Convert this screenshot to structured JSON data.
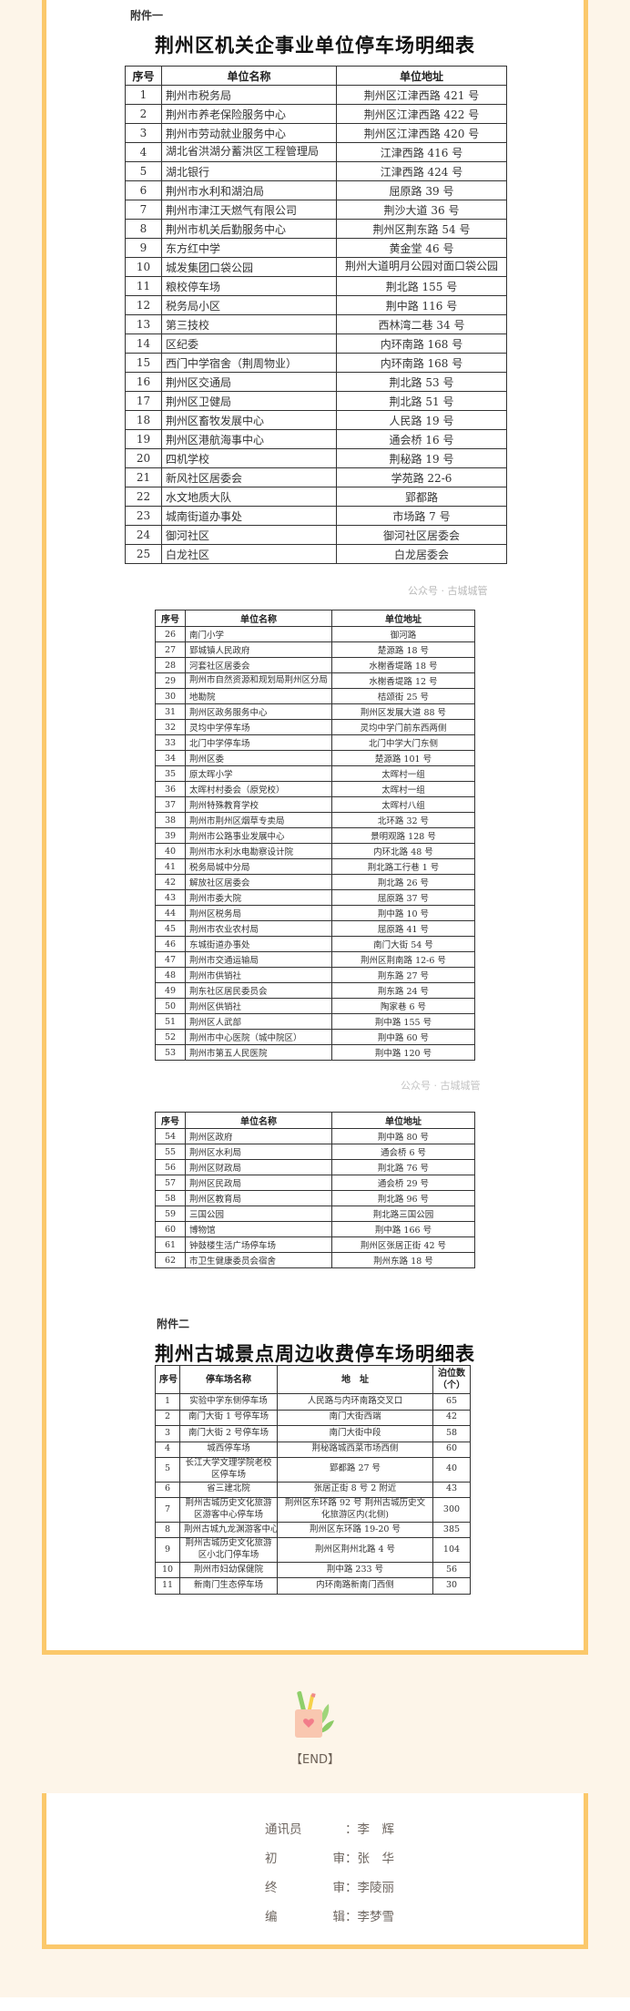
{
  "annex1": {
    "label": "附件一",
    "title": "荆州区机关企事业单位停车场明细表",
    "headers": [
      "序号",
      "单位名称",
      "单位地址"
    ],
    "rows": [
      [
        "1",
        "荆州市税务局",
        "荆州区江津西路 421 号"
      ],
      [
        "2",
        "荆州市养老保险服务中心",
        "荆州区江津西路 422 号"
      ],
      [
        "3",
        "荆州市劳动就业服务中心",
        "荆州区江津西路 420 号"
      ],
      [
        "4",
        "湖北省洪湖分蓄洪区工程管理局",
        "江津西路 416 号"
      ],
      [
        "5",
        "湖北银行",
        "江津西路 424 号"
      ],
      [
        "6",
        "荆州市水利和湖泊局",
        "屈原路 39 号"
      ],
      [
        "7",
        "荆州市津江天燃气有限公司",
        "荆沙大道 36 号"
      ],
      [
        "8",
        "荆州市机关后勤服务中心",
        "荆州区荆东路 54 号"
      ],
      [
        "9",
        "东方红中学",
        "黄金堂 46 号"
      ],
      [
        "10",
        "城发集团口袋公园",
        "荆州大道明月公园对面口袋公园"
      ],
      [
        "11",
        "粮校停车场",
        "荆北路 155 号"
      ],
      [
        "12",
        "税务局小区",
        "荆中路 116 号"
      ],
      [
        "13",
        "第三技校",
        "西林湾二巷 34 号"
      ],
      [
        "14",
        "区纪委",
        "内环南路 168 号"
      ],
      [
        "15",
        "西门中学宿舍（荆周物业）",
        "内环南路 168 号"
      ],
      [
        "16",
        "荆州区交通局",
        "荆北路 53 号"
      ],
      [
        "17",
        "荆州区卫健局",
        "荆北路 51 号"
      ],
      [
        "18",
        "荆州区畜牧发展中心",
        "人民路 19 号"
      ],
      [
        "19",
        "荆州区港航海事中心",
        "通会桥 16 号"
      ],
      [
        "20",
        "四机学校",
        "荆秘路 19 号"
      ],
      [
        "21",
        "新风社区居委会",
        "学苑路 22-6"
      ],
      [
        "22",
        "水文地质大队",
        "郢都路"
      ],
      [
        "23",
        "城南街道办事处",
        "市场路 7 号"
      ],
      [
        "24",
        "御河社区",
        "御河社区居委会"
      ],
      [
        "25",
        "白龙社区",
        "白龙居委会"
      ]
    ],
    "rows_part2": [
      [
        "26",
        "南门小学",
        "御河路"
      ],
      [
        "27",
        "郢城镇人民政府",
        "楚源路 18 号"
      ],
      [
        "28",
        "河套社区居委会",
        "水榭香堤路 18 号"
      ],
      [
        "29",
        "荆州市自然资源和规划局荆州区分局",
        "水榭香堤路 12 号"
      ],
      [
        "30",
        "地勘院",
        "桔颂街 25 号"
      ],
      [
        "31",
        "荆州区政务服务中心",
        "荆州区发展大道 88 号"
      ],
      [
        "32",
        "灵均中学停车场",
        "灵均中学门前东西两侧"
      ],
      [
        "33",
        "北门中学停车场",
        "北门中学大门东侧"
      ],
      [
        "34",
        "荆州区委",
        "楚源路 101 号"
      ],
      [
        "35",
        "原太晖小学",
        "太晖村一组"
      ],
      [
        "36",
        "太晖村村委会（原党校）",
        "太晖村一组"
      ],
      [
        "37",
        "荆州特殊教育学校",
        "太晖村八组"
      ],
      [
        "38",
        "荆州市荆州区烟草专卖局",
        "北环路 32 号"
      ],
      [
        "39",
        "荆州市公路事业发展中心",
        "景明观路 128 号"
      ],
      [
        "40",
        "荆州市水利水电勘察设计院",
        "内环北路 48 号"
      ],
      [
        "41",
        "税务局城中分局",
        "荆北路工行巷 1 号"
      ],
      [
        "42",
        "解放社区居委会",
        "荆北路 26 号"
      ],
      [
        "43",
        "荆州市委大院",
        "屈原路 37 号"
      ],
      [
        "44",
        "荆州区税务局",
        "荆中路 10 号"
      ],
      [
        "45",
        "荆州市农业农村局",
        "屈原路 41 号"
      ],
      [
        "46",
        "东城街道办事处",
        "南门大街 54 号"
      ],
      [
        "47",
        "荆州市交通运输局",
        "荆州区荆南路 12-6 号"
      ],
      [
        "48",
        "荆州市供销社",
        "荆东路 27 号"
      ],
      [
        "49",
        "荆东社区居民委员会",
        "荆东路 24 号"
      ],
      [
        "50",
        "荆州区供销社",
        "陶家巷 6 号"
      ],
      [
        "51",
        "荆州区人武部",
        "荆中路 155 号"
      ],
      [
        "52",
        "荆州市中心医院（城中院区）",
        "荆中路 60 号"
      ],
      [
        "53",
        "荆州市第五人民医院",
        "荆中路 120 号"
      ]
    ],
    "rows_part3": [
      [
        "54",
        "荆州区政府",
        "荆中路 80 号"
      ],
      [
        "55",
        "荆州区水利局",
        "通会桥 6 号"
      ],
      [
        "56",
        "荆州区财政局",
        "荆北路 76 号"
      ],
      [
        "57",
        "荆州区民政局",
        "通会桥 29 号"
      ],
      [
        "58",
        "荆州区教育局",
        "荆北路 96 号"
      ],
      [
        "59",
        "三国公园",
        "荆北路三国公园"
      ],
      [
        "60",
        "博物馆",
        "荆中路 166 号"
      ],
      [
        "61",
        "钟鼓楼生活广场停车场",
        "荆州区张居正街 42 号"
      ],
      [
        "62",
        "市卫生健康委员会宿舍",
        "荆州东路 18 号"
      ]
    ]
  },
  "annex2": {
    "label": "附件二",
    "title": "荆州古城景点周边收费停车场明细表",
    "headers": [
      "序号",
      "停车场名称",
      "地　址",
      "泊位数（个）"
    ],
    "rows": [
      [
        "1",
        "实验中学东侧停车场",
        "人民路与内环南路交叉口",
        "65"
      ],
      [
        "2",
        "南门大街 1 号停车场",
        "南门大街西端",
        "42"
      ],
      [
        "3",
        "南门大街 2 号停车场",
        "南门大街中段",
        "58"
      ],
      [
        "4",
        "城西停车场",
        "荆秘路城西菜市场西侧",
        "60"
      ],
      [
        "5",
        "长江大学文理学院老校区停车场",
        "郢都路 27 号",
        "40"
      ],
      [
        "6",
        "省三建北院",
        "张居正街 8 号 2 附近",
        "43"
      ],
      [
        "7",
        "荆州古城历史文化旅游区游客中心停车场",
        "荆州区东环路 92 号 荆州古城历史文化旅游区内(北侧)",
        "300"
      ],
      [
        "8",
        "荆州古城九龙渊游客中心",
        "荆州区东环路 19-20 号",
        "385"
      ],
      [
        "9",
        "荆州古城历史文化旅游区小北门停车场",
        "荆州区荆州北路 4 号",
        "104"
      ],
      [
        "10",
        "荆州市妇幼保健院",
        "荆中路 233 号",
        "56"
      ],
      [
        "11",
        "新南门生态停车场",
        "内环南路新南门西侧",
        "30"
      ]
    ]
  },
  "watermark": "公众号 · 古城城管",
  "end_label": "【END】",
  "credits": [
    {
      "label": [
        "通讯员",
        ""
      ],
      "value": "李　辉"
    },
    {
      "label": [
        "初",
        "审"
      ],
      "value": "张　华"
    },
    {
      "label": [
        "终",
        "审"
      ],
      "value": "李陵丽"
    },
    {
      "label": [
        "编",
        "辑"
      ],
      "value": "李梦雪"
    }
  ],
  "colors": {
    "frame": "#fbc86b",
    "background": "#fdf5e9"
  }
}
